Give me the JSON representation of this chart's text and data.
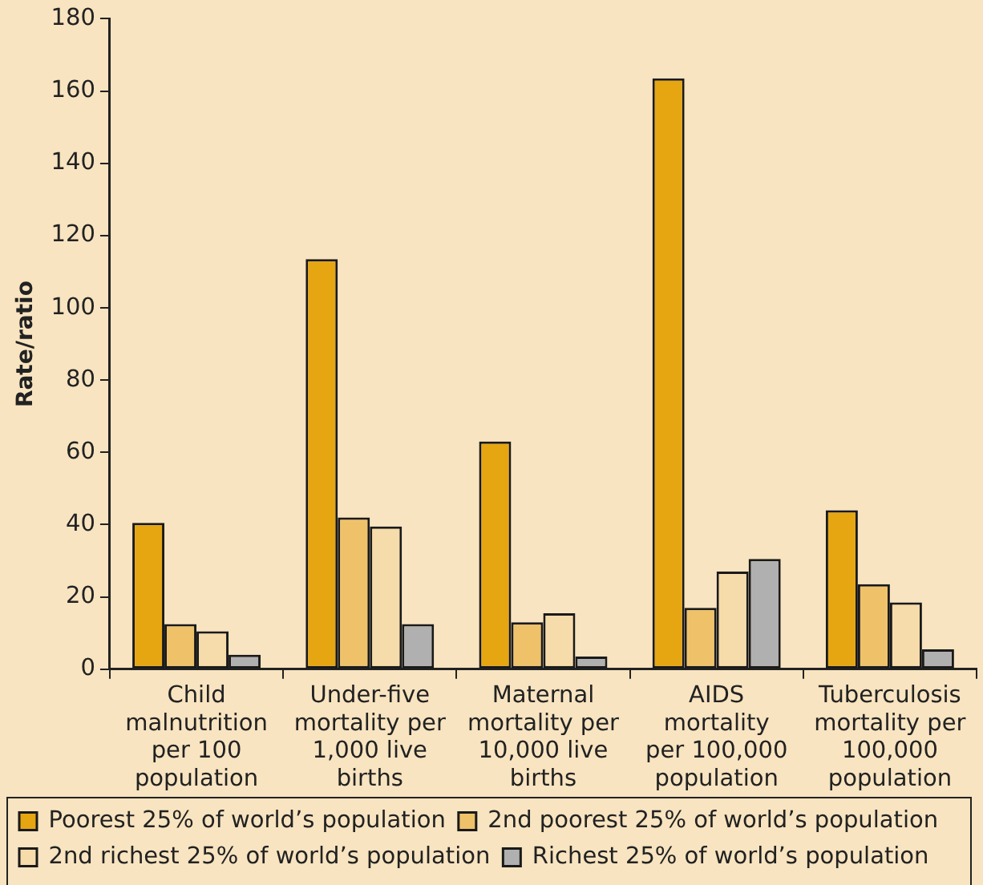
{
  "chart_data": {
    "type": "bar",
    "ylabel": "Rate/ratio",
    "categories": [
      "Child\nmalnutrition\nper 100\npopulation",
      "Under-five\nmortality per\n1,000 live\nbirths",
      "Maternal\nmortality per\n10,000 live\nbirths",
      "AIDS\nmortality\nper 100,000\npopulation",
      "Tuberculosis\nmortality per\n100,000\npopulation"
    ],
    "series": [
      {
        "name": "Poorest 25% of world’s population",
        "color": "#e6a612",
        "values": [
          40.5,
          113.5,
          63,
          163.5,
          44
        ]
      },
      {
        "name": "2nd poorest 25% of world’s population",
        "color": "#efc26a",
        "values": [
          12.5,
          42,
          13,
          17,
          23.5
        ]
      },
      {
        "name": "2nd richest 25% of world’s population",
        "color": "#f6dcaa",
        "values": [
          10.5,
          39.5,
          15.5,
          27,
          18.5
        ]
      },
      {
        "name": "Richest 25% of world’s population",
        "color": "#b0b0b0",
        "values": [
          4,
          12.5,
          3.5,
          30.5,
          5.5
        ]
      }
    ],
    "ylim": [
      0,
      180
    ],
    "yticks": [
      0,
      20,
      40,
      60,
      80,
      100,
      120,
      140,
      160,
      180
    ],
    "grid": false,
    "legend": "bottom left"
  }
}
